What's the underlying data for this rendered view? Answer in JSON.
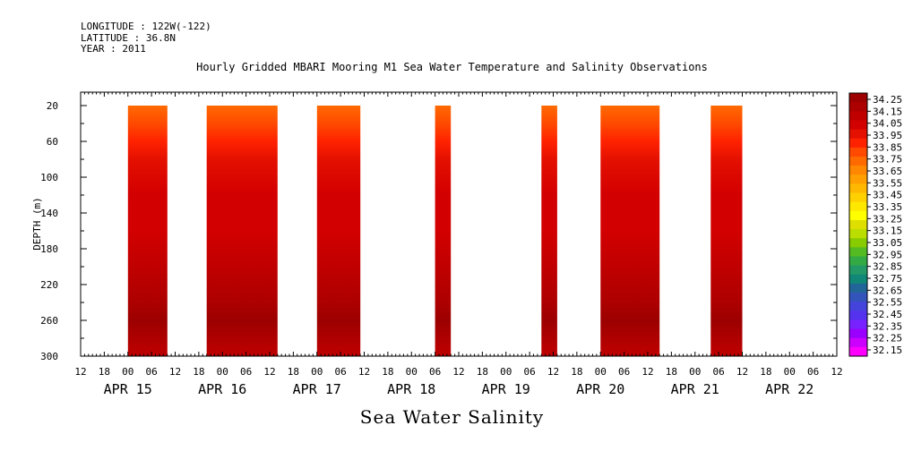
{
  "header": {
    "longitude": "LONGITUDE : 122W(-122)",
    "latitude": "LATITUDE : 36.8N",
    "year": "YEAR : 2011"
  },
  "chart_data": {
    "type": "heatmap",
    "title": "Hourly Gridded MBARI Mooring M1 Sea Water Temperature and Salinity Observations",
    "bottom_title": "Sea Water Salinity",
    "ylabel": "DEPTH (m)",
    "ylim": [
      300,
      5
    ],
    "y_ticks": [
      20,
      60,
      100,
      140,
      180,
      220,
      260,
      300
    ],
    "x_hour_ticks": [
      "12",
      "18",
      "00",
      "06",
      "12",
      "18",
      "00",
      "06",
      "12",
      "18",
      "00",
      "06",
      "12",
      "18",
      "00",
      "06",
      "12",
      "18",
      "00",
      "06",
      "12",
      "18",
      "00",
      "06",
      "12",
      "18",
      "00",
      "06",
      "12",
      "18",
      "00",
      "06",
      "12"
    ],
    "x_date_labels": [
      "APR 15",
      "APR 16",
      "APR 17",
      "APR 18",
      "APR 19",
      "APR 20",
      "APR 21",
      "APR 22"
    ],
    "x_range": [
      "2011-04-14T12:00",
      "2011-04-22T12:00"
    ],
    "data_blocks": [
      {
        "start": "2011-04-15T00:00",
        "end": "2011-04-15T10:00"
      },
      {
        "start": "2011-04-15T20:00",
        "end": "2011-04-16T14:00"
      },
      {
        "start": "2011-04-17T00:00",
        "end": "2011-04-17T11:00"
      },
      {
        "start": "2011-04-18T06:00",
        "end": "2011-04-18T10:00"
      },
      {
        "start": "2011-04-19T09:00",
        "end": "2011-04-19T13:00"
      },
      {
        "start": "2011-04-20T00:00",
        "end": "2011-04-20T15:00"
      },
      {
        "start": "2011-04-21T04:00",
        "end": "2011-04-21T12:00"
      }
    ],
    "depth_profile": [
      {
        "depth": 20,
        "value": 33.7
      },
      {
        "depth": 40,
        "value": 33.8
      },
      {
        "depth": 60,
        "value": 33.9
      },
      {
        "depth": 80,
        "value": 33.95
      },
      {
        "depth": 120,
        "value": 34.0
      },
      {
        "depth": 160,
        "value": 34.05
      },
      {
        "depth": 200,
        "value": 34.1
      },
      {
        "depth": 240,
        "value": 34.2
      },
      {
        "depth": 260,
        "value": 34.25
      },
      {
        "depth": 300,
        "value": 34.1
      }
    ],
    "colorbar_labels": [
      "34.25",
      "34.15",
      "34.05",
      "33.95",
      "33.85",
      "33.75",
      "33.65",
      "33.55",
      "33.45",
      "33.35",
      "33.25",
      "33.15",
      "33.05",
      "32.95",
      "32.85",
      "32.75",
      "32.65",
      "32.55",
      "32.45",
      "32.35",
      "32.25",
      "32.15"
    ],
    "colorbar_colors": [
      "#9c0000",
      "#ad0000",
      "#c00000",
      "#d20000",
      "#e41000",
      "#ff2200",
      "#ff4a00",
      "#ff6a00",
      "#ff8800",
      "#ffa000",
      "#ffb800",
      "#ffd000",
      "#ffe800",
      "#ffff00",
      "#dede00",
      "#bbdd00",
      "#88cc00",
      "#55bb22",
      "#33aa44",
      "#229966",
      "#118877",
      "#226699",
      "#3355bb",
      "#4444dd",
      "#5533ee",
      "#7722ff",
      "#9900ff",
      "#cc00ff",
      "#ff00ff"
    ]
  }
}
